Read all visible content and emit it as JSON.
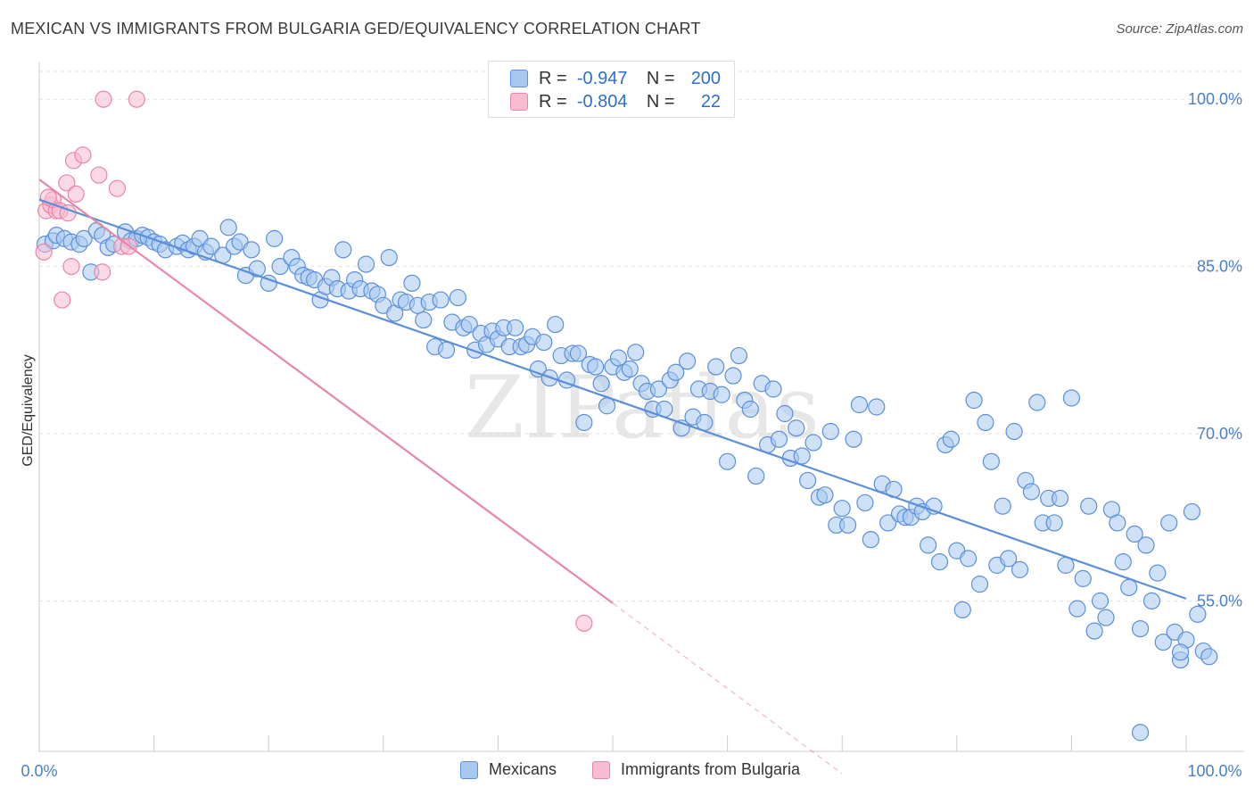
{
  "title": "MEXICAN VS IMMIGRANTS FROM BULGARIA GED/EQUIVALENCY CORRELATION CHART",
  "source": "Source: ZipAtlas.com",
  "watermark": "ZIPatlas",
  "legend": {
    "rows": [
      {
        "r_label": "R =",
        "r_value": "-0.947",
        "n_label": "N =",
        "n_value": "200",
        "color": "#a8c8f0",
        "border": "#5b8fd9"
      },
      {
        "r_label": "R =",
        "r_value": "-0.804",
        "n_label": "N =",
        "n_value": "22",
        "color": "#f7bcd0",
        "border": "#e886a6"
      }
    ]
  },
  "bottom_legend": [
    {
      "label": "Mexicans",
      "color": "#a8c8f0",
      "border": "#5b8fd9"
    },
    {
      "label": "Immigrants from Bulgaria",
      "color": "#f7bcd0",
      "border": "#e886a6"
    }
  ],
  "chart_data": {
    "type": "scatter",
    "ylabel": "GED/Equivalency",
    "xlim": [
      0,
      100
    ],
    "ylim": [
      41.5,
      102.5
    ],
    "x_tick_labels": [
      "0.0%",
      "100.0%"
    ],
    "y_ticks": [
      55,
      70,
      85,
      100
    ],
    "y_tick_labels": [
      "55.0%",
      "70.0%",
      "85.0%",
      "100.0%"
    ],
    "grid": "horizontal dashed",
    "legend_position": "top-center",
    "series": [
      {
        "name": "Mexicans",
        "color": "#5b8fd9",
        "fill": "#a8c8f0",
        "trend": {
          "x": [
            0,
            100
          ],
          "y": [
            91.0,
            55.2
          ]
        },
        "points": [
          [
            0.5,
            87.0
          ],
          [
            1.2,
            87.3
          ],
          [
            1.5,
            87.8
          ],
          [
            2.2,
            87.5
          ],
          [
            2.8,
            87.2
          ],
          [
            3.5,
            87.0
          ],
          [
            3.9,
            87.5
          ],
          [
            4.5,
            84.5
          ],
          [
            5.0,
            88.2
          ],
          [
            5.5,
            87.8
          ],
          [
            6.0,
            86.7
          ],
          [
            6.5,
            87.0
          ],
          [
            7.5,
            88.1
          ],
          [
            8.0,
            87.3
          ],
          [
            8.5,
            87.5
          ],
          [
            9.0,
            87.8
          ],
          [
            9.5,
            87.6
          ],
          [
            10.0,
            87.2
          ],
          [
            10.5,
            87.0
          ],
          [
            11.0,
            86.5
          ],
          [
            12.0,
            86.8
          ],
          [
            12.5,
            87.1
          ],
          [
            13.0,
            86.5
          ],
          [
            13.5,
            86.8
          ],
          [
            14.0,
            87.5
          ],
          [
            14.5,
            86.3
          ],
          [
            15.0,
            86.8
          ],
          [
            16.0,
            86.0
          ],
          [
            16.5,
            88.5
          ],
          [
            17.0,
            86.8
          ],
          [
            17.5,
            87.2
          ],
          [
            18.0,
            84.2
          ],
          [
            18.5,
            86.5
          ],
          [
            19.0,
            84.8
          ],
          [
            20.0,
            83.5
          ],
          [
            20.5,
            87.5
          ],
          [
            21.0,
            85.0
          ],
          [
            22.0,
            85.8
          ],
          [
            22.5,
            85.0
          ],
          [
            23.0,
            84.2
          ],
          [
            23.5,
            84.0
          ],
          [
            24.0,
            83.8
          ],
          [
            24.5,
            82.0
          ],
          [
            25.0,
            83.2
          ],
          [
            25.5,
            84.0
          ],
          [
            26.0,
            83.0
          ],
          [
            26.5,
            86.5
          ],
          [
            27.0,
            82.8
          ],
          [
            27.5,
            83.8
          ],
          [
            28.0,
            83.0
          ],
          [
            28.5,
            85.2
          ],
          [
            29.0,
            82.8
          ],
          [
            29.5,
            82.5
          ],
          [
            30.0,
            81.5
          ],
          [
            30.5,
            85.8
          ],
          [
            31.0,
            80.8
          ],
          [
            31.5,
            82.0
          ],
          [
            32.0,
            81.8
          ],
          [
            32.5,
            83.5
          ],
          [
            33.0,
            81.5
          ],
          [
            33.5,
            80.2
          ],
          [
            34.0,
            81.8
          ],
          [
            34.5,
            77.8
          ],
          [
            35.0,
            82.0
          ],
          [
            35.5,
            77.5
          ],
          [
            36.0,
            80.0
          ],
          [
            36.5,
            82.2
          ],
          [
            37.0,
            79.5
          ],
          [
            37.5,
            79.8
          ],
          [
            38.0,
            77.5
          ],
          [
            38.5,
            79.0
          ],
          [
            39.0,
            78.0
          ],
          [
            39.5,
            79.2
          ],
          [
            40.0,
            78.5
          ],
          [
            40.5,
            79.5
          ],
          [
            41.0,
            77.8
          ],
          [
            41.5,
            79.5
          ],
          [
            42.0,
            77.8
          ],
          [
            42.5,
            78.0
          ],
          [
            43.0,
            78.7
          ],
          [
            43.5,
            75.8
          ],
          [
            44.0,
            78.2
          ],
          [
            44.5,
            75.0
          ],
          [
            45.0,
            79.8
          ],
          [
            45.5,
            77.0
          ],
          [
            46.0,
            74.8
          ],
          [
            46.5,
            77.2
          ],
          [
            47.0,
            77.2
          ],
          [
            47.5,
            71.0
          ],
          [
            48.0,
            76.2
          ],
          [
            48.5,
            76.0
          ],
          [
            49.0,
            74.5
          ],
          [
            49.5,
            72.5
          ],
          [
            50.0,
            76.0
          ],
          [
            50.5,
            76.8
          ],
          [
            51.0,
            75.5
          ],
          [
            51.5,
            75.8
          ],
          [
            52.0,
            77.3
          ],
          [
            52.5,
            74.5
          ],
          [
            53.0,
            73.8
          ],
          [
            53.5,
            72.2
          ],
          [
            54.0,
            74.0
          ],
          [
            54.5,
            72.2
          ],
          [
            55.0,
            74.8
          ],
          [
            55.5,
            75.5
          ],
          [
            56.0,
            70.5
          ],
          [
            56.5,
            76.5
          ],
          [
            57.0,
            71.5
          ],
          [
            57.5,
            74.0
          ],
          [
            58.0,
            71.0
          ],
          [
            58.5,
            73.8
          ],
          [
            59.0,
            76.0
          ],
          [
            59.5,
            73.5
          ],
          [
            60.0,
            67.5
          ],
          [
            60.5,
            75.2
          ],
          [
            61.0,
            77.0
          ],
          [
            61.5,
            73.0
          ],
          [
            62.0,
            72.2
          ],
          [
            62.5,
            66.2
          ],
          [
            63.0,
            74.5
          ],
          [
            63.5,
            69.0
          ],
          [
            64.0,
            74.0
          ],
          [
            64.5,
            69.5
          ],
          [
            65.0,
            71.8
          ],
          [
            65.5,
            67.8
          ],
          [
            66.0,
            70.5
          ],
          [
            66.5,
            68.0
          ],
          [
            67.0,
            65.8
          ],
          [
            67.5,
            69.2
          ],
          [
            68.0,
            64.3
          ],
          [
            68.5,
            64.5
          ],
          [
            69.0,
            70.2
          ],
          [
            69.5,
            61.8
          ],
          [
            70.0,
            63.3
          ],
          [
            70.5,
            61.8
          ],
          [
            71.0,
            69.5
          ],
          [
            71.5,
            72.6
          ],
          [
            72.0,
            63.8
          ],
          [
            72.5,
            60.5
          ],
          [
            73.0,
            72.4
          ],
          [
            73.5,
            65.5
          ],
          [
            74.0,
            62.0
          ],
          [
            74.5,
            65.0
          ],
          [
            75.0,
            62.8
          ],
          [
            75.5,
            62.5
          ],
          [
            76.0,
            62.5
          ],
          [
            76.5,
            63.5
          ],
          [
            77.0,
            63.0
          ],
          [
            77.5,
            60.0
          ],
          [
            78.0,
            63.5
          ],
          [
            78.5,
            58.5
          ],
          [
            79.0,
            69.0
          ],
          [
            79.5,
            69.5
          ],
          [
            80.0,
            59.5
          ],
          [
            80.5,
            54.2
          ],
          [
            81.0,
            58.8
          ],
          [
            81.5,
            73.0
          ],
          [
            82.0,
            56.5
          ],
          [
            82.5,
            71.0
          ],
          [
            83.0,
            67.5
          ],
          [
            83.5,
            58.2
          ],
          [
            84.0,
            63.5
          ],
          [
            84.5,
            58.8
          ],
          [
            85.0,
            70.2
          ],
          [
            85.5,
            57.8
          ],
          [
            86.0,
            65.8
          ],
          [
            86.5,
            64.8
          ],
          [
            87.0,
            72.8
          ],
          [
            87.5,
            62.0
          ],
          [
            88.0,
            64.2
          ],
          [
            88.5,
            62.0
          ],
          [
            89.0,
            64.2
          ],
          [
            89.5,
            58.2
          ],
          [
            90.0,
            73.2
          ],
          [
            90.5,
            54.3
          ],
          [
            91.0,
            57.0
          ],
          [
            91.5,
            63.5
          ],
          [
            92.0,
            52.3
          ],
          [
            92.5,
            55.0
          ],
          [
            93.0,
            53.5
          ],
          [
            93.5,
            63.2
          ],
          [
            94.0,
            62.0
          ],
          [
            94.5,
            58.5
          ],
          [
            95.0,
            56.2
          ],
          [
            95.5,
            61.0
          ],
          [
            96.0,
            52.5
          ],
          [
            96.5,
            60.0
          ],
          [
            97.0,
            55.0
          ],
          [
            97.5,
            57.5
          ],
          [
            98.0,
            51.3
          ],
          [
            98.5,
            62.0
          ],
          [
            99.0,
            52.2
          ],
          [
            99.5,
            49.7
          ],
          [
            100.0,
            51.5
          ],
          [
            100.5,
            63.0
          ],
          [
            101.0,
            53.8
          ],
          [
            101.5,
            50.5
          ],
          [
            102.0,
            50.0
          ],
          [
            96.0,
            43.2
          ],
          [
            99.5,
            50.4
          ]
        ]
      },
      {
        "name": "Immigrants from Bulgaria",
        "color": "#e886a6",
        "fill": "#f7bcd0",
        "trend": {
          "x": [
            0,
            50
          ],
          "y": [
            92.8,
            54.8
          ],
          "dashed_to": {
            "x": 70,
            "y": 39.5
          }
        },
        "points": [
          [
            0.4,
            86.3
          ],
          [
            0.6,
            90.0
          ],
          [
            1.0,
            90.5
          ],
          [
            1.5,
            90.0
          ],
          [
            2.0,
            82.0
          ],
          [
            2.4,
            92.5
          ],
          [
            2.8,
            85.0
          ],
          [
            3.0,
            94.5
          ],
          [
            3.2,
            91.5
          ],
          [
            3.8,
            95.0
          ],
          [
            5.2,
            93.2
          ],
          [
            5.5,
            84.5
          ],
          [
            5.6,
            100.0
          ],
          [
            6.8,
            92.0
          ],
          [
            7.2,
            86.8
          ],
          [
            7.8,
            86.8
          ],
          [
            8.5,
            100.0
          ],
          [
            1.2,
            91.0
          ],
          [
            1.8,
            90.0
          ],
          [
            2.5,
            89.8
          ],
          [
            47.5,
            53.0
          ],
          [
            0.8,
            91.2
          ]
        ]
      }
    ]
  }
}
